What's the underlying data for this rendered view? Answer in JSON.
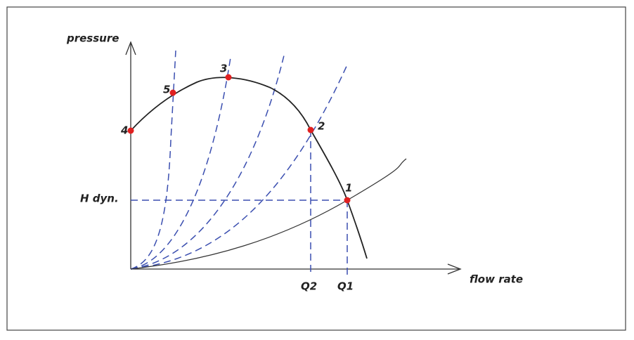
{
  "axes": {
    "y_label": "pressure",
    "x_label": "flow rate"
  },
  "annotations": {
    "h_dyn": "H dyn.",
    "q2": "Q2",
    "q1": "Q1"
  },
  "points": [
    {
      "label": "1"
    },
    {
      "label": "2"
    },
    {
      "label": "3"
    },
    {
      "label": "4"
    },
    {
      "label": "5"
    }
  ]
}
